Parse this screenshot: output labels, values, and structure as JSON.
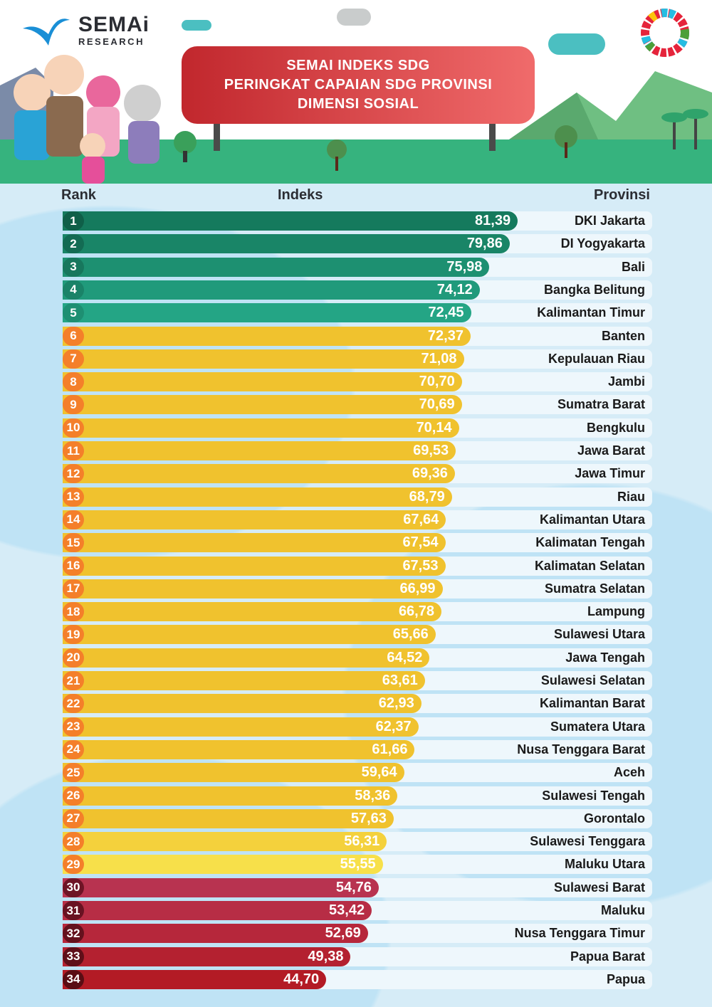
{
  "header": {
    "logo_main": "SEMAi",
    "logo_sub": "RESEARCH",
    "title_lines": [
      "SEMAI INDEKS SDG",
      "PERINGKAT CAPAIAN SDG PROVINSI",
      "DIMENSI SOSIAL"
    ]
  },
  "columns": {
    "rank": "Rank",
    "index": "Indeks",
    "province": "Provinsi"
  },
  "colors": {
    "top": "#1f8a6c",
    "mid": "#f0c22e",
    "low": "#b8283d",
    "mid_rank": "#f47f2a"
  },
  "chart_data": {
    "type": "bar",
    "title": "SEMAI INDEKS SDG - PERINGKAT CAPAIAN SDG PROVINSI - DIMENSI SOSIAL",
    "xlabel": "Indeks",
    "ylabel": "Provinsi",
    "orientation": "horizontal",
    "grid": false,
    "xlim": [
      0,
      85
    ],
    "categories": [
      "DKI Jakarta",
      "DI Yogyakarta",
      "Bali",
      "Bangka Belitung",
      "Kalimantan Timur",
      "Banten",
      "Kepulauan Riau",
      "Jambi",
      "Sumatra Barat",
      "Bengkulu",
      "Jawa Barat",
      "Jawa Timur",
      "Riau",
      "Kalimantan Utara",
      "Kalimatan Tengah",
      "Kalimatan Selatan",
      "Sumatra Selatan",
      "Lampung",
      "Sulawesi Utara",
      "Jawa Tengah",
      "Sulawesi Selatan",
      "Kalimantan Barat",
      "Sumatera Utara",
      "Nusa Tenggara Barat",
      "Aceh",
      "Sulawesi Tengah",
      "Gorontalo",
      "Sulawesi Tenggara",
      "Maluku Utara",
      "Sulawesi Barat",
      "Maluku",
      "Nusa Tenggara Timur",
      "Papua Barat",
      "Papua"
    ],
    "ranks": [
      1,
      2,
      3,
      4,
      5,
      6,
      7,
      8,
      9,
      10,
      11,
      12,
      13,
      14,
      15,
      16,
      17,
      18,
      19,
      20,
      21,
      22,
      23,
      24,
      25,
      26,
      27,
      28,
      29,
      30,
      31,
      32,
      33,
      34
    ],
    "values": [
      81.39,
      79.86,
      75.98,
      74.12,
      72.45,
      72.37,
      71.08,
      70.7,
      70.69,
      70.14,
      69.53,
      69.36,
      68.79,
      67.64,
      67.54,
      67.53,
      66.99,
      66.78,
      65.66,
      64.52,
      63.61,
      62.93,
      62.37,
      61.66,
      59.64,
      58.36,
      57.63,
      56.31,
      55.55,
      54.76,
      53.42,
      52.69,
      49.38,
      44.7
    ],
    "labels": [
      "81,39",
      "79,86",
      "75,98",
      "74,12",
      "72,45",
      "72,37",
      "71,08",
      "70,70",
      "70,69",
      "70,14",
      "69,53",
      "69,36",
      "68,79",
      "67,64",
      "67,54",
      "67,53",
      "66,99",
      "66,78",
      "65,66",
      "64,52",
      "63,61",
      "62,93",
      "62,37",
      "61,66",
      "59,64",
      "58,36",
      "57,63",
      "56,31",
      "55,55",
      "54,76",
      "53,42",
      "52,69",
      "49,38",
      "44,70"
    ],
    "groups": [
      {
        "name": "top",
        "ranks": [
          1,
          5
        ]
      },
      {
        "name": "mid",
        "ranks": [
          6,
          29
        ]
      },
      {
        "name": "low",
        "ranks": [
          30,
          34
        ]
      }
    ]
  }
}
